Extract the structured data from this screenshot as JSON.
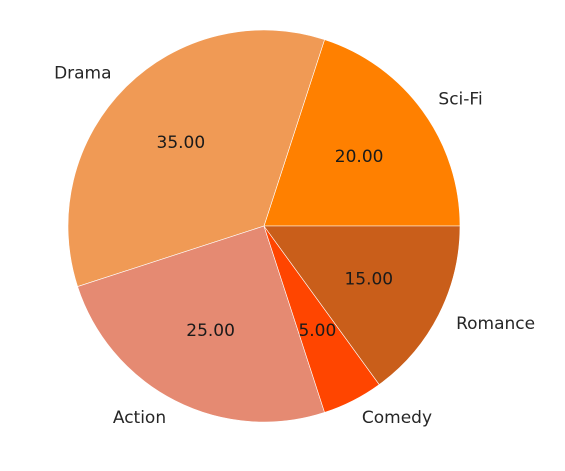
{
  "chart_data": {
    "type": "pie",
    "title": "",
    "categories": [
      "Sci-Fi",
      "Drama",
      "Action",
      "Comedy",
      "Romance"
    ],
    "values": [
      20,
      35,
      25,
      5,
      15
    ],
    "value_labels": [
      "20.00",
      "35.00",
      "25.00",
      "5.00",
      "15.00"
    ],
    "colors": [
      "#ff8000",
      "#f09a55",
      "#e58a72",
      "#ff4500",
      "#c95e1a"
    ],
    "start_angle_deg": 0,
    "direction": "counterclockwise",
    "legend": "none"
  }
}
